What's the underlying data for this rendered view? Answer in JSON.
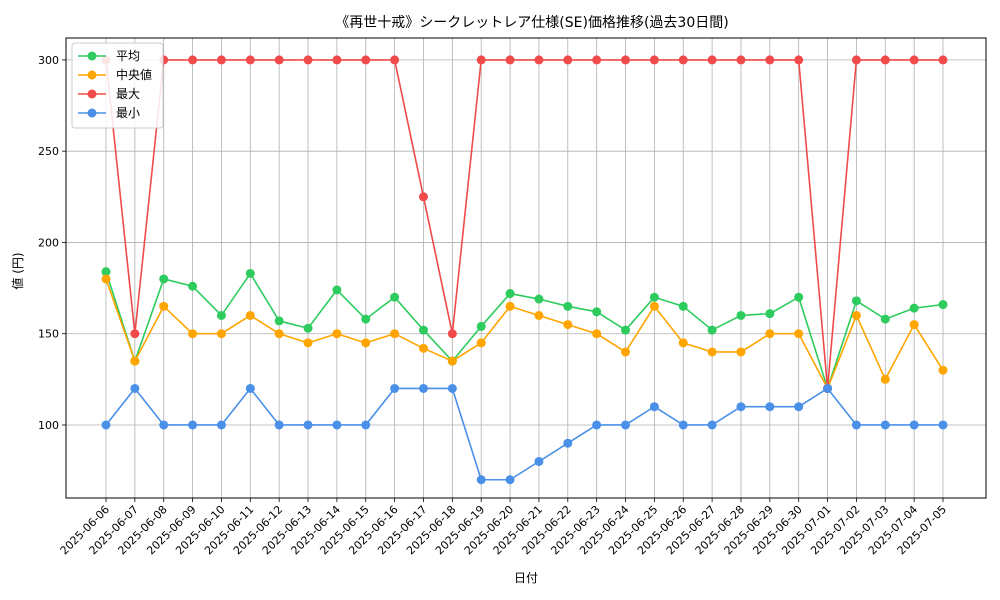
{
  "chart_data": {
    "type": "line",
    "title": "《再世十戒》シークレットレア仕様(SE)価格推移(過去30日間)",
    "xlabel": "日付",
    "ylabel": "値 (円)",
    "ylim": [
      60,
      312
    ],
    "yticks": [
      100,
      150,
      200,
      250,
      300
    ],
    "grid": true,
    "legend_position": "top-left",
    "categories": [
      "2025-06-06",
      "2025-06-07",
      "2025-06-08",
      "2025-06-09",
      "2025-06-10",
      "2025-06-11",
      "2025-06-12",
      "2025-06-13",
      "2025-06-14",
      "2025-06-15",
      "2025-06-16",
      "2025-06-17",
      "2025-06-18",
      "2025-06-19",
      "2025-06-20",
      "2025-06-21",
      "2025-06-22",
      "2025-06-23",
      "2025-06-24",
      "2025-06-25",
      "2025-06-26",
      "2025-06-27",
      "2025-06-28",
      "2025-06-29",
      "2025-06-30",
      "2025-07-01",
      "2025-07-02",
      "2025-07-03",
      "2025-07-04",
      "2025-07-05"
    ],
    "series": [
      {
        "name": "平均",
        "color": "#2ecc5f",
        "values": [
          184,
          135,
          180,
          176,
          160,
          183,
          157,
          153,
          174,
          158,
          170,
          152,
          135,
          154,
          172,
          169,
          165,
          162,
          152,
          170,
          165,
          152,
          160,
          161,
          170,
          120,
          168,
          158,
          164,
          166
        ]
      },
      {
        "name": "中央値",
        "color": "#ffa500",
        "values": [
          180,
          135,
          165,
          150,
          150,
          160,
          150,
          145,
          150,
          145,
          150,
          142,
          135,
          145,
          165,
          160,
          155,
          150,
          140,
          165,
          145,
          140,
          140,
          150,
          150,
          120,
          160,
          125,
          155,
          130
        ]
      },
      {
        "name": "最大",
        "color": "#f04a4a",
        "values": [
          300,
          150,
          300,
          300,
          300,
          300,
          300,
          300,
          300,
          300,
          300,
          225,
          150,
          300,
          300,
          300,
          300,
          300,
          300,
          300,
          300,
          300,
          300,
          300,
          300,
          120,
          300,
          300,
          300,
          300
        ]
      },
      {
        "name": "最小",
        "color": "#4a90e8",
        "values": [
          100,
          120,
          100,
          100,
          100,
          120,
          100,
          100,
          100,
          100,
          120,
          120,
          120,
          70,
          70,
          80,
          90,
          100,
          100,
          110,
          100,
          100,
          110,
          110,
          110,
          120,
          100,
          100,
          100,
          100
        ]
      }
    ]
  }
}
